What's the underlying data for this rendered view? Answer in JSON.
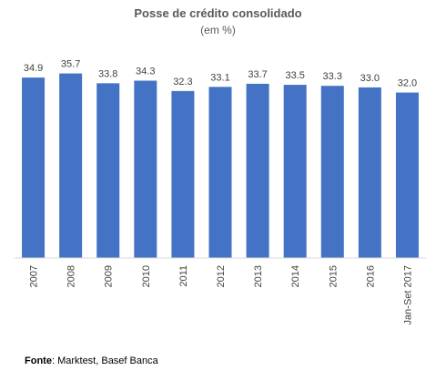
{
  "chart_data": {
    "type": "bar",
    "title": "Posse de crédito consolidado",
    "subtitle": "(em %)",
    "xlabel": "",
    "ylabel": "",
    "categories": [
      "2007",
      "2008",
      "2009",
      "2010",
      "2011",
      "2012",
      "2013",
      "2014",
      "2015",
      "2016",
      "Jan-Set 2017"
    ],
    "values": [
      34.9,
      35.7,
      33.8,
      34.3,
      32.3,
      33.1,
      33.7,
      33.5,
      33.3,
      33.0,
      32.0
    ],
    "ylim": [
      0,
      40
    ],
    "grid": false,
    "legend": "none",
    "bar_color": "#4472C4"
  },
  "source": {
    "label": "Fonte",
    "text": ": Marktest, Basef Banca"
  }
}
